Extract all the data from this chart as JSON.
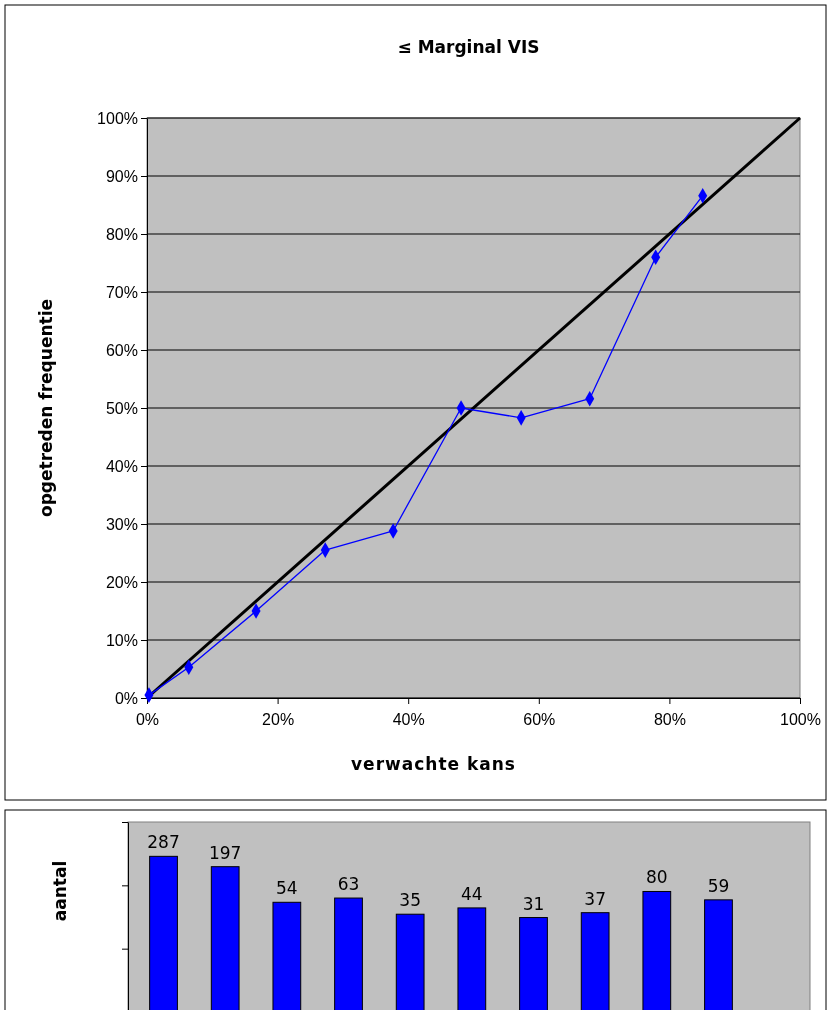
{
  "chart_data": [
    {
      "type": "line",
      "title": "≤ Marginal VIS",
      "xlabel": "verwachte kans",
      "ylabel": "opgetreden frequentie",
      "xlim": [
        0,
        100
      ],
      "ylim": [
        0,
        100
      ],
      "xticks": [
        {
          "value": 0,
          "label": "0%"
        },
        {
          "value": 20,
          "label": "20%"
        },
        {
          "value": 40,
          "label": "40%"
        },
        {
          "value": 60,
          "label": "60%"
        },
        {
          "value": 80,
          "label": "80%"
        },
        {
          "value": 100,
          "label": "100%"
        }
      ],
      "yticks": [
        {
          "value": 0,
          "label": "0%"
        },
        {
          "value": 10,
          "label": "10%"
        },
        {
          "value": 20,
          "label": "20%"
        },
        {
          "value": 30,
          "label": "30%"
        },
        {
          "value": 40,
          "label": "40%"
        },
        {
          "value": 50,
          "label": "50%"
        },
        {
          "value": 60,
          "label": "60%"
        },
        {
          "value": 70,
          "label": "70%"
        },
        {
          "value": 80,
          "label": "80%"
        },
        {
          "value": 90,
          "label": "90%"
        },
        {
          "value": 100,
          "label": "100%"
        }
      ],
      "grid": "y",
      "line_style": "solid",
      "series": [
        {
          "type": "line",
          "marker": "none",
          "color": "#000000",
          "x": [
            0,
            100
          ],
          "values": [
            0,
            100
          ]
        },
        {
          "type": "line",
          "marker": "diamond",
          "color": "#0000ff",
          "x": [
            0.3,
            6.4,
            16.7,
            27.3,
            37.7,
            48.1,
            57.3,
            67.8,
            77.9,
            85.1
          ],
          "values": [
            0.5,
            5.3,
            15,
            25.5,
            28.8,
            50,
            48.3,
            51.6,
            76,
            86.6
          ]
        }
      ]
    },
    {
      "type": "bar",
      "ylabel": "aantal",
      "categories": [
        null,
        null,
        null,
        null,
        null,
        null,
        null,
        null,
        null,
        null
      ],
      "log": true,
      "ylim": [
        1,
        1000
      ],
      "yticks": [
        {
          "value": 10,
          "label": null
        },
        {
          "value": 100,
          "label": null
        },
        {
          "value": 1000,
          "label": null
        }
      ],
      "data_labels": true,
      "color": "#0000ff",
      "values": [
        287,
        197,
        54,
        63,
        35,
        44,
        31,
        37,
        80,
        59
      ]
    }
  ]
}
